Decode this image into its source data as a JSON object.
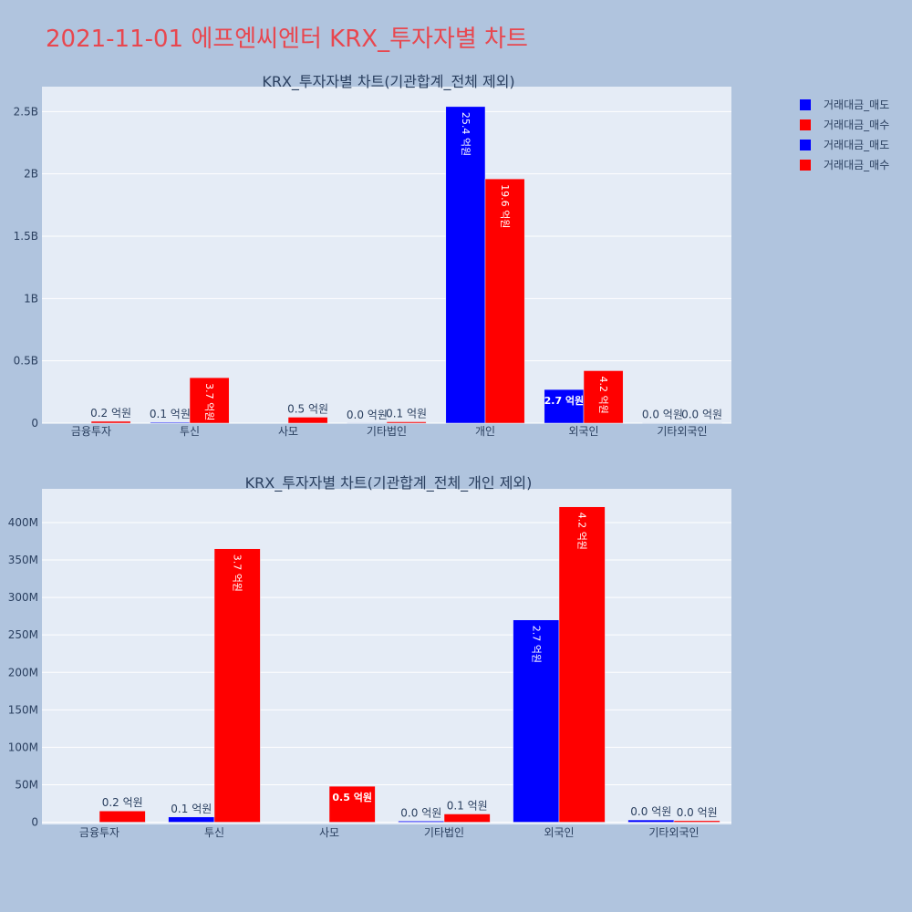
{
  "page": {
    "title": "2021-11-01 에프엔씨엔터 KRX_투자자별 차트",
    "background": "#b0c4de",
    "title_color": "#e8474f"
  },
  "legend": {
    "placement": "top-right",
    "items": [
      {
        "label": "거래대금_매도",
        "color": "#0000ff"
      },
      {
        "label": "거래대금_매수",
        "color": "#ff0000"
      },
      {
        "label": "거래대금_매도",
        "color": "#0000ff"
      },
      {
        "label": "거래대금_매수",
        "color": "#ff0000"
      }
    ]
  },
  "chart_data": [
    {
      "type": "bar",
      "title": "KRX_투자자별 차트(기관합계_전체 제외)",
      "categories": [
        "금융투자",
        "투신",
        "사모",
        "기타법인",
        "개인",
        "외국인",
        "기타외국인"
      ],
      "ylim": [
        0,
        2700000000
      ],
      "yticks": [
        0,
        500000000,
        1000000000,
        1500000000,
        2000000000,
        2500000000
      ],
      "ytick_labels": [
        "0",
        "0.5B",
        "1B",
        "1.5B",
        "2B",
        "2.5B"
      ],
      "grid": true,
      "series": [
        {
          "name": "거래대금_매도",
          "color": "#0000ff",
          "values": [
            0,
            7000000,
            0,
            1500000,
            2540000000,
            270000000,
            3000000
          ],
          "labels": [
            "",
            "0.1 억원",
            "",
            "0.0 억원",
            "25.4 억원",
            "2.7 억원",
            "0.0 억원"
          ],
          "label_modes": [
            "none",
            "out",
            "none",
            "out",
            "in-rot",
            "in",
            "out"
          ]
        },
        {
          "name": "거래대금_매수",
          "color": "#ff0000",
          "values": [
            15000000,
            365000000,
            48000000,
            11000000,
            1960000000,
            421000000,
            2000000
          ],
          "labels": [
            "0.2 억원",
            "3.7 억원",
            "0.5 억원",
            "0.1 억원",
            "19.6 억원",
            "4.2 억원",
            "0.0 억원"
          ],
          "label_modes": [
            "out",
            "in-rot",
            "out",
            "out",
            "in-rot",
            "in-rot",
            "out"
          ]
        }
      ]
    },
    {
      "type": "bar",
      "title": "KRX_투자자별 차트(기관합계_전체_개인 제외)",
      "categories": [
        "금융투자",
        "투신",
        "사모",
        "기타법인",
        "외국인",
        "기타외국인"
      ],
      "ylim": [
        -3000000,
        445000000
      ],
      "yticks": [
        0,
        50000000,
        100000000,
        150000000,
        200000000,
        250000000,
        300000000,
        350000000,
        400000000
      ],
      "ytick_labels": [
        "0",
        "50M",
        "100M",
        "150M",
        "200M",
        "250M",
        "300M",
        "350M",
        "400M"
      ],
      "grid": true,
      "series": [
        {
          "name": "거래대금_매도",
          "color": "#0000ff",
          "values": [
            0,
            7000000,
            0,
            1500000,
            270000000,
            3000000
          ],
          "labels": [
            "",
            "0.1 억원",
            "",
            "0.0 억원",
            "2.7 억원",
            "0.0 억원"
          ],
          "label_modes": [
            "none",
            "out",
            "none",
            "out",
            "in-rot",
            "out"
          ]
        },
        {
          "name": "거래대금_매수",
          "color": "#ff0000",
          "values": [
            15000000,
            365000000,
            48000000,
            11000000,
            421000000,
            2000000
          ],
          "labels": [
            "0.2 억원",
            "3.7 억원",
            "0.5 억원",
            "0.1 억원",
            "4.2 억원",
            "0.0 억원"
          ],
          "label_modes": [
            "out",
            "in-rot",
            "in",
            "out",
            "in-rot",
            "out"
          ]
        }
      ]
    }
  ]
}
